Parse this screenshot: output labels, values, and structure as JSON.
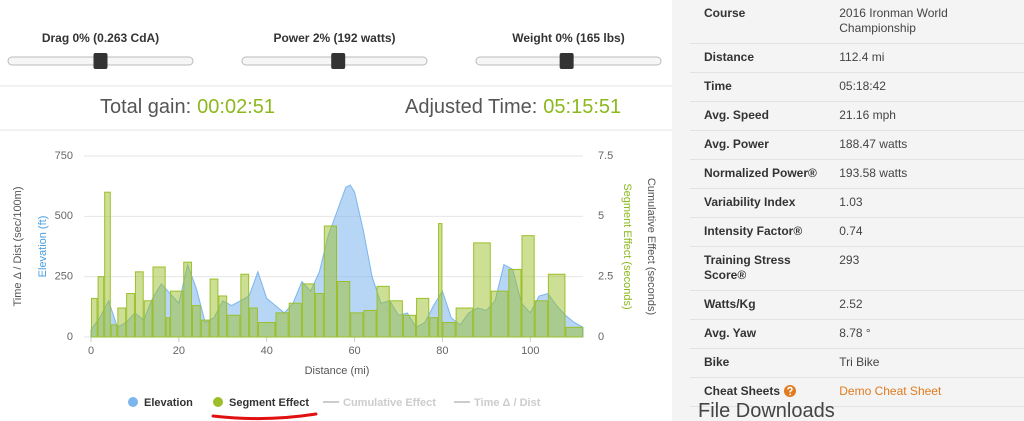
{
  "sliders": [
    {
      "label": "Drag 0% (0.263 CdA)"
    },
    {
      "label": "Power 2% (192 watts)"
    },
    {
      "label": "Weight 0% (165 lbs)"
    }
  ],
  "summary": {
    "total_gain": {
      "label": "Total gain:",
      "value": "00:02:51"
    },
    "adjusted_time": {
      "label": "Adjusted Time:",
      "value": "05:15:51"
    }
  },
  "chart_data": {
    "type": "combo",
    "axis_titles": {
      "x": "Distance (mi)",
      "y": [
        {
          "text": "Time Δ / Dist (sec/100m)",
          "color": "#555555"
        },
        {
          "text": "Elevation (ft)",
          "color": "#4a9fe0"
        }
      ],
      "y2": [
        {
          "text": "Segment Effect (seconds)",
          "color": "#8cb81e"
        },
        {
          "text": "Cumulative Effect (seconds)",
          "color": "#555555"
        }
      ]
    },
    "xlim": [
      0,
      112
    ],
    "xticks": [
      0,
      20,
      40,
      60,
      80,
      100
    ],
    "ylim": [
      0,
      750
    ],
    "yticks": [
      0,
      250,
      500,
      750
    ],
    "y2lim": [
      0,
      7.5
    ],
    "y2ticks": [
      0,
      2.5,
      5,
      7.5
    ],
    "grid": true,
    "series": [
      {
        "name": "Elevation",
        "color": "#7cb5ec",
        "type": "area",
        "x": [
          0,
          2,
          4,
          6,
          8,
          10,
          12,
          14,
          16,
          18,
          20,
          22,
          24,
          26,
          28,
          30,
          32,
          34,
          36,
          38,
          40,
          42,
          44,
          46,
          48,
          50,
          52,
          54,
          56,
          58,
          59,
          60,
          62,
          64,
          66,
          68,
          70,
          72,
          74,
          76,
          78,
          80,
          82,
          84,
          86,
          88,
          90,
          92,
          94,
          96,
          98,
          100,
          102,
          104,
          106,
          108,
          110,
          112
        ],
        "values": [
          30,
          80,
          150,
          40,
          60,
          100,
          70,
          160,
          220,
          180,
          140,
          300,
          200,
          60,
          80,
          150,
          130,
          150,
          170,
          270,
          160,
          130,
          100,
          140,
          230,
          190,
          270,
          420,
          520,
          620,
          630,
          600,
          440,
          250,
          140,
          150,
          90,
          100,
          40,
          60,
          130,
          190,
          80,
          50,
          100,
          120,
          110,
          150,
          300,
          280,
          140,
          100,
          170,
          180,
          130,
          90,
          60,
          40
        ]
      },
      {
        "name": "Segment Effect",
        "color": "#9bbf2a",
        "type": "bar",
        "axis": "y2",
        "bins": [
          0,
          1.5,
          3,
          4.5,
          6,
          8,
          10,
          12,
          14,
          17,
          18,
          21,
          23,
          25,
          27,
          29,
          31,
          34,
          36,
          38,
          42,
          45,
          48,
          51,
          53,
          56,
          59,
          62,
          65,
          68,
          71,
          74,
          77,
          79,
          80,
          83,
          87,
          91,
          95,
          98,
          101,
          104,
          108,
          112
        ],
        "values": [
          1.6,
          2.5,
          6,
          0.5,
          1.2,
          1.8,
          2.7,
          1.5,
          2.9,
          0.8,
          1.9,
          3.1,
          1.3,
          0.7,
          2.4,
          1.7,
          0.9,
          2.6,
          1.2,
          0.6,
          1.0,
          1.4,
          2.2,
          1.8,
          4.6,
          2.3,
          1.0,
          1.1,
          2.1,
          1.5,
          0.9,
          1.6,
          0.8,
          4.7,
          0.6,
          1.2,
          3.9,
          1.9,
          2.8,
          4.2,
          1.5,
          2.6,
          0.4
        ]
      },
      {
        "name": "Cumulative Effect",
        "color": "#cccccc",
        "type": "line",
        "axis": "y2",
        "visible": false
      },
      {
        "name": "Time Δ / Dist",
        "color": "#cccccc",
        "type": "line",
        "visible": false
      }
    ]
  },
  "stats": [
    {
      "label": "Course",
      "value": "2016 Ironman World Championship"
    },
    {
      "label": "Distance",
      "value": "112.4 mi"
    },
    {
      "label": "Time",
      "value": "05:18:42"
    },
    {
      "label": "Avg. Speed",
      "value": "21.16 mph"
    },
    {
      "label": "Avg. Power",
      "value": "188.47 watts"
    },
    {
      "label": "Normalized Power®",
      "value": "193.58 watts"
    },
    {
      "label": "Variability Index",
      "value": "1.03"
    },
    {
      "label": "Intensity Factor®",
      "value": "0.74"
    },
    {
      "label": "Training Stress Score®",
      "value": "293"
    },
    {
      "label": "Watts/Kg",
      "value": "2.52"
    },
    {
      "label": "Avg. Yaw",
      "value": "8.78 °"
    },
    {
      "label": "Bike",
      "value": "Tri Bike"
    },
    {
      "label": "Cheat Sheets",
      "value": "Demo Cheat Sheet"
    }
  ],
  "file_downloads": "File Downloads"
}
